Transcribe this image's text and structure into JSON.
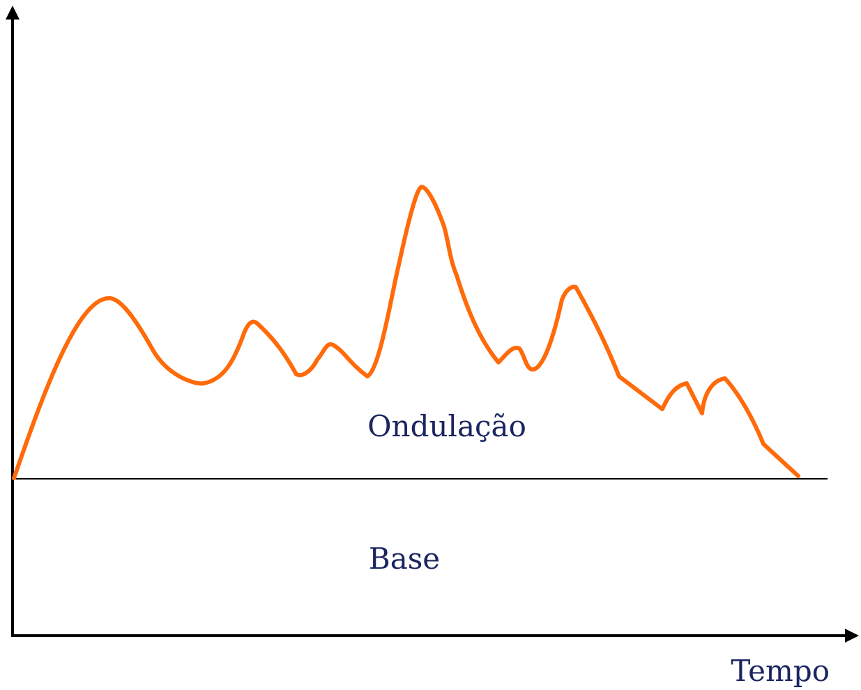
{
  "labels": {
    "ripple": "Ondulação",
    "base": "Base",
    "x_axis": "Tempo"
  }
}
